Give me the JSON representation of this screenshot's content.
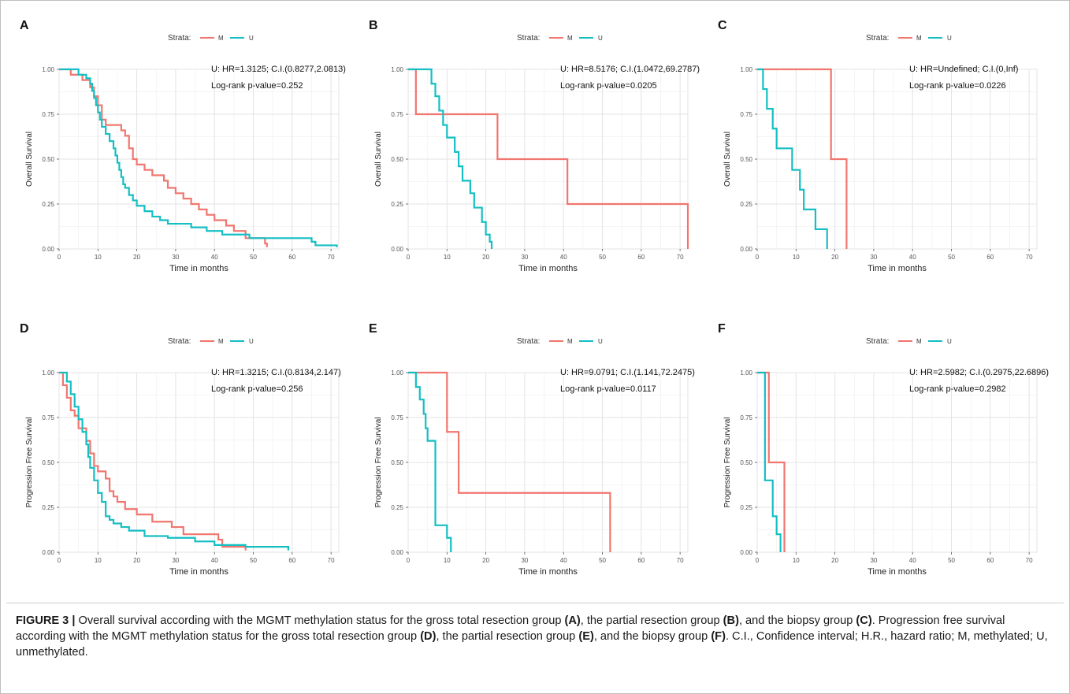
{
  "colors": {
    "M": "#f0766e",
    "U": "#14bfc4"
  },
  "legend": {
    "strata_label": "Strata:",
    "m_label": "M",
    "u_label": "U"
  },
  "caption": {
    "figure_label": "FIGURE 3 |",
    "segments": [
      {
        "text": " Overall survival according with the MGMT methylation status for the gross total resection group ",
        "bold": false
      },
      {
        "text": "(A)",
        "bold": true
      },
      {
        "text": ", the partial resection group ",
        "bold": false
      },
      {
        "text": "(B)",
        "bold": true
      },
      {
        "text": ", and the biopsy group ",
        "bold": false
      },
      {
        "text": "(C)",
        "bold": true
      },
      {
        "text": ". Progression free survival according with the MGMT methylation status for the gross total resection group ",
        "bold": false
      },
      {
        "text": "(D)",
        "bold": true
      },
      {
        "text": ", the partial resection group ",
        "bold": false
      },
      {
        "text": "(E)",
        "bold": true
      },
      {
        "text": ", and the biopsy group ",
        "bold": false
      },
      {
        "text": "(F)",
        "bold": true
      },
      {
        "text": ". C.I., Confidence interval; H.R., hazard ratio; M, methylated; U, unmethylated.",
        "bold": false
      }
    ]
  },
  "chart_data": [
    {
      "panel": "A",
      "type": "line",
      "xlabel": "Time in months",
      "ylabel": "Overall Survival",
      "xlim": [
        0,
        72
      ],
      "ylim": [
        0,
        1
      ],
      "xticks": [
        "0",
        "10",
        "20",
        "30",
        "40",
        "50",
        "60",
        "70"
      ],
      "yticks": [
        "0.00",
        "0.25",
        "0.50",
        "0.75",
        "1.00"
      ],
      "annotation": [
        "U: HR=1.3125; C.I.(0.8277,2.0813)",
        "Log-rank p-value=0.252"
      ],
      "series": [
        {
          "name": "M",
          "steps": [
            [
              0,
              1
            ],
            [
              3,
              0.97
            ],
            [
              6,
              0.94
            ],
            [
              8,
              0.9
            ],
            [
              9,
              0.85
            ],
            [
              10,
              0.8
            ],
            [
              11,
              0.72
            ],
            [
              12,
              0.69
            ],
            [
              16,
              0.66
            ],
            [
              17,
              0.63
            ],
            [
              18,
              0.56
            ],
            [
              19,
              0.5
            ],
            [
              20,
              0.47
            ],
            [
              22,
              0.44
            ],
            [
              24,
              0.41
            ],
            [
              27,
              0.38
            ],
            [
              28,
              0.34
            ],
            [
              30,
              0.31
            ],
            [
              32,
              0.28
            ],
            [
              34,
              0.25
            ],
            [
              36,
              0.22
            ],
            [
              38,
              0.19
            ],
            [
              40,
              0.16
            ],
            [
              43,
              0.13
            ],
            [
              45,
              0.1
            ],
            [
              48,
              0.06
            ],
            [
              53,
              0.03
            ],
            [
              53.5,
              0.01
            ]
          ]
        },
        {
          "name": "U",
          "steps": [
            [
              0,
              1
            ],
            [
              5,
              0.97
            ],
            [
              7,
              0.95
            ],
            [
              8,
              0.92
            ],
            [
              8.5,
              0.88
            ],
            [
              9,
              0.84
            ],
            [
              9.5,
              0.8
            ],
            [
              10,
              0.76
            ],
            [
              10.5,
              0.72
            ],
            [
              11,
              0.68
            ],
            [
              12,
              0.64
            ],
            [
              13,
              0.6
            ],
            [
              14,
              0.56
            ],
            [
              14.5,
              0.52
            ],
            [
              15,
              0.48
            ],
            [
              15.5,
              0.44
            ],
            [
              16,
              0.4
            ],
            [
              16.5,
              0.36
            ],
            [
              17,
              0.34
            ],
            [
              18,
              0.3
            ],
            [
              19,
              0.27
            ],
            [
              20,
              0.24
            ],
            [
              22,
              0.21
            ],
            [
              24,
              0.18
            ],
            [
              26,
              0.16
            ],
            [
              28,
              0.14
            ],
            [
              34,
              0.12
            ],
            [
              38,
              0.1
            ],
            [
              42,
              0.08
            ],
            [
              49,
              0.06
            ],
            [
              65,
              0.04
            ],
            [
              66,
              0.02
            ],
            [
              71.5,
              0.01
            ]
          ]
        }
      ]
    },
    {
      "panel": "B",
      "type": "line",
      "xlabel": "Time in months",
      "ylabel": "Overall Survival",
      "xlim": [
        0,
        72
      ],
      "ylim": [
        0,
        1
      ],
      "xticks": [
        "0",
        "10",
        "20",
        "30",
        "40",
        "50",
        "60",
        "70"
      ],
      "yticks": [
        "0.00",
        "0.25",
        "0.50",
        "0.75",
        "1.00"
      ],
      "annotation": [
        "U: HR=8.5176; C.I.(1.0472,69.2787)",
        "Log-rank p-value=0.0205"
      ],
      "series": [
        {
          "name": "M",
          "steps": [
            [
              0,
              1
            ],
            [
              2,
              0.75
            ],
            [
              23,
              0.5
            ],
            [
              41,
              0.25
            ],
            [
              72,
              0
            ]
          ]
        },
        {
          "name": "U",
          "steps": [
            [
              0,
              1
            ],
            [
              6,
              0.92
            ],
            [
              7,
              0.85
            ],
            [
              8,
              0.77
            ],
            [
              9,
              0.69
            ],
            [
              10,
              0.62
            ],
            [
              12,
              0.54
            ],
            [
              13,
              0.46
            ],
            [
              14,
              0.38
            ],
            [
              16,
              0.31
            ],
            [
              17,
              0.23
            ],
            [
              19,
              0.15
            ],
            [
              20,
              0.08
            ],
            [
              21,
              0.04
            ],
            [
              21.5,
              0
            ]
          ]
        }
      ]
    },
    {
      "panel": "C",
      "type": "line",
      "xlabel": "Time in months",
      "ylabel": "Overall Survival",
      "xlim": [
        0,
        72
      ],
      "ylim": [
        0,
        1
      ],
      "xticks": [
        "0",
        "10",
        "20",
        "30",
        "40",
        "50",
        "60",
        "70"
      ],
      "yticks": [
        "0.00",
        "0.25",
        "0.50",
        "0.75",
        "1.00"
      ],
      "annotation": [
        "U: HR=Undefined; C.I.(0,Inf)",
        "Log-rank p-value=0.0226"
      ],
      "series": [
        {
          "name": "M",
          "steps": [
            [
              0,
              1
            ],
            [
              19,
              0.5
            ],
            [
              23,
              0
            ]
          ]
        },
        {
          "name": "U",
          "steps": [
            [
              0,
              1
            ],
            [
              1.5,
              0.89
            ],
            [
              2.5,
              0.78
            ],
            [
              4,
              0.67
            ],
            [
              5,
              0.56
            ],
            [
              9,
              0.44
            ],
            [
              11,
              0.33
            ],
            [
              12,
              0.22
            ],
            [
              15,
              0.11
            ],
            [
              18,
              0
            ]
          ]
        }
      ]
    },
    {
      "panel": "D",
      "type": "line",
      "xlabel": "Time in months",
      "ylabel": "Progression Free Survival",
      "xlim": [
        0,
        72
      ],
      "ylim": [
        0,
        1
      ],
      "xticks": [
        "0",
        "10",
        "20",
        "30",
        "40",
        "50",
        "60",
        "70"
      ],
      "yticks": [
        "0.00",
        "0.25",
        "0.50",
        "0.75",
        "1.00"
      ],
      "annotation": [
        "U: HR=1.3215; C.I.(0.8134,2.147)",
        "Log-rank p-value=0.256"
      ],
      "series": [
        {
          "name": "M",
          "steps": [
            [
              0,
              1
            ],
            [
              1,
              0.93
            ],
            [
              2,
              0.86
            ],
            [
              3,
              0.79
            ],
            [
              4,
              0.76
            ],
            [
              5,
              0.69
            ],
            [
              7,
              0.62
            ],
            [
              8,
              0.55
            ],
            [
              9,
              0.48
            ],
            [
              10,
              0.45
            ],
            [
              12,
              0.41
            ],
            [
              13,
              0.34
            ],
            [
              14,
              0.31
            ],
            [
              15,
              0.28
            ],
            [
              17,
              0.24
            ],
            [
              20,
              0.21
            ],
            [
              24,
              0.17
            ],
            [
              29,
              0.14
            ],
            [
              32,
              0.1
            ],
            [
              41,
              0.07
            ],
            [
              42,
              0.03
            ],
            [
              48,
              0.01
            ]
          ]
        },
        {
          "name": "U",
          "steps": [
            [
              0,
              1
            ],
            [
              2,
              0.95
            ],
            [
              3,
              0.88
            ],
            [
              4,
              0.81
            ],
            [
              5,
              0.74
            ],
            [
              6,
              0.67
            ],
            [
              7,
              0.6
            ],
            [
              7.5,
              0.53
            ],
            [
              8,
              0.47
            ],
            [
              9,
              0.4
            ],
            [
              10,
              0.33
            ],
            [
              11,
              0.28
            ],
            [
              12,
              0.2
            ],
            [
              13,
              0.18
            ],
            [
              14,
              0.16
            ],
            [
              16,
              0.14
            ],
            [
              18,
              0.12
            ],
            [
              22,
              0.09
            ],
            [
              28,
              0.08
            ],
            [
              35,
              0.06
            ],
            [
              40,
              0.04
            ],
            [
              48,
              0.03
            ],
            [
              59,
              0.01
            ]
          ]
        }
      ]
    },
    {
      "panel": "E",
      "type": "line",
      "xlabel": "Time in months",
      "ylabel": "Progression Free Survival",
      "xlim": [
        0,
        72
      ],
      "ylim": [
        0,
        1
      ],
      "xticks": [
        "0",
        "10",
        "20",
        "30",
        "40",
        "50",
        "60",
        "70"
      ],
      "yticks": [
        "0.00",
        "0.25",
        "0.50",
        "0.75",
        "1.00"
      ],
      "annotation": [
        "U: HR=9.0791; C.I.(1.141,72.2475)",
        "Log-rank p-value=0.0117"
      ],
      "series": [
        {
          "name": "M",
          "steps": [
            [
              0,
              1
            ],
            [
              10,
              0.67
            ],
            [
              13,
              0.33
            ],
            [
              52,
              0
            ]
          ]
        },
        {
          "name": "U",
          "steps": [
            [
              0,
              1
            ],
            [
              2,
              0.92
            ],
            [
              3,
              0.85
            ],
            [
              4,
              0.77
            ],
            [
              4.5,
              0.69
            ],
            [
              5,
              0.62
            ],
            [
              7,
              0.15
            ],
            [
              10,
              0.08
            ],
            [
              11,
              0
            ]
          ]
        }
      ]
    },
    {
      "panel": "F",
      "type": "line",
      "xlabel": "Time in months",
      "ylabel": "Progression Free Survival",
      "xlim": [
        0,
        72
      ],
      "ylim": [
        0,
        1
      ],
      "xticks": [
        "0",
        "10",
        "20",
        "30",
        "40",
        "50",
        "60",
        "70"
      ],
      "yticks": [
        "0.00",
        "0.25",
        "0.50",
        "0.75",
        "1.00"
      ],
      "annotation": [
        "U: HR=2.5982; C.I.(0.2975,22.6896)",
        "Log-rank p-value=0.2982"
      ],
      "series": [
        {
          "name": "M",
          "steps": [
            [
              0,
              1
            ],
            [
              3,
              0.5
            ],
            [
              7,
              0
            ]
          ]
        },
        {
          "name": "U",
          "steps": [
            [
              0,
              1
            ],
            [
              2,
              0.4
            ],
            [
              4,
              0.2
            ],
            [
              5,
              0.1
            ],
            [
              6,
              0
            ]
          ]
        }
      ]
    }
  ]
}
